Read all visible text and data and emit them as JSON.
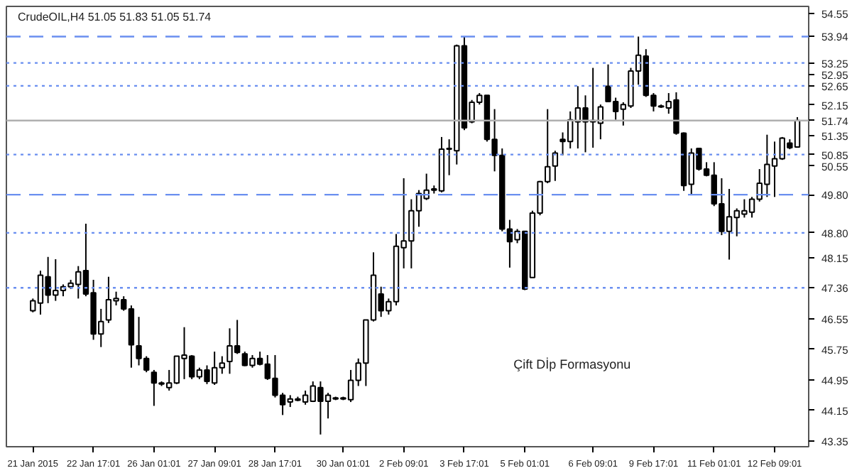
{
  "chart_data": {
    "type": "candlestick",
    "title": "CrudeOIL,H4  51.05 51.83 51.05 51.74",
    "categories": [
      "21 Jan 2015",
      null,
      null,
      null,
      null,
      null,
      null,
      null,
      "22 Jan 17:01",
      null,
      null,
      null,
      null,
      null,
      null,
      null,
      "26 Jan 01:01",
      null,
      null,
      null,
      null,
      null,
      null,
      null,
      "27 Jan 09:01",
      null,
      null,
      null,
      null,
      null,
      null,
      null,
      "28 Jan 17:01",
      null,
      null,
      null,
      null,
      null,
      null,
      null,
      null,
      "30 Jan 01:01",
      null,
      null,
      null,
      null,
      null,
      null,
      null,
      "2 Feb 09:01",
      null,
      null,
      null,
      null,
      null,
      null,
      null,
      "3 Feb 17:01",
      null,
      null,
      null,
      null,
      null,
      null,
      null,
      "5 Feb 01:01",
      null,
      null,
      null,
      null,
      null,
      null,
      null,
      null,
      "6 Feb 09:01",
      null,
      null,
      null,
      null,
      null,
      null,
      null,
      "9 Feb 17:01",
      null,
      null,
      null,
      null,
      null,
      null,
      null,
      "11 Feb 01:01",
      null,
      null,
      null,
      null,
      null,
      null,
      null,
      "12 Feb 09:01",
      null,
      null,
      null
    ],
    "ohlc": [
      [
        46.76,
        47.08,
        46.72,
        47.02
      ],
      [
        46.96,
        47.81,
        46.66,
        47.69
      ],
      [
        47.65,
        48.17,
        46.96,
        47.17
      ],
      [
        47.17,
        48.11,
        47.02,
        47.29
      ],
      [
        47.29,
        47.45,
        47.14,
        47.39
      ],
      [
        47.39,
        47.57,
        47.33,
        47.48
      ],
      [
        47.45,
        47.93,
        47.08,
        47.78
      ],
      [
        47.81,
        49.04,
        47.14,
        47.2
      ],
      [
        47.23,
        47.57,
        46.0,
        46.15
      ],
      [
        46.15,
        46.81,
        45.81,
        46.48
      ],
      [
        46.52,
        47.65,
        46.44,
        47.05
      ],
      [
        47.02,
        47.26,
        46.9,
        47.08
      ],
      [
        47.05,
        47.14,
        46.76,
        46.81
      ],
      [
        46.81,
        46.9,
        45.27,
        45.87
      ],
      [
        45.84,
        46.6,
        45.33,
        45.51
      ],
      [
        45.51,
        45.57,
        45.15,
        45.21
      ],
      [
        45.15,
        45.21,
        44.27,
        44.87
      ],
      [
        44.87,
        44.91,
        44.79,
        44.84
      ],
      [
        44.75,
        45.21,
        44.67,
        44.87
      ],
      [
        44.87,
        45.57,
        44.84,
        45.57
      ],
      [
        45.51,
        46.33,
        44.97,
        45.6
      ],
      [
        45.57,
        45.6,
        44.97,
        45.03
      ],
      [
        45.03,
        45.27,
        44.97,
        45.21
      ],
      [
        45.21,
        45.33,
        44.84,
        44.91
      ],
      [
        44.87,
        45.69,
        44.82,
        45.27
      ],
      [
        45.27,
        45.57,
        45.11,
        45.39
      ],
      [
        45.43,
        46.3,
        45.11,
        45.84
      ],
      [
        45.84,
        46.52,
        45.63,
        45.67
      ],
      [
        45.63,
        45.69,
        45.31,
        45.33
      ],
      [
        45.33,
        45.6,
        45.27,
        45.51
      ],
      [
        45.51,
        45.69,
        45.33,
        45.36
      ],
      [
        45.36,
        45.6,
        44.95,
        44.99
      ],
      [
        44.99,
        45.6,
        44.49,
        44.55
      ],
      [
        44.55,
        44.61,
        44.03,
        44.3
      ],
      [
        44.37,
        44.55,
        44.24,
        44.45
      ],
      [
        44.42,
        44.51,
        44.39,
        44.45
      ],
      [
        44.37,
        44.67,
        44.3,
        44.55
      ],
      [
        44.39,
        44.91,
        44.37,
        44.79
      ],
      [
        44.75,
        44.91,
        43.52,
        44.39
      ],
      [
        44.39,
        44.61,
        43.94,
        44.55
      ],
      [
        44.48,
        44.51,
        44.42,
        44.45
      ],
      [
        44.45,
        44.51,
        44.42,
        44.48
      ],
      [
        44.43,
        45.21,
        44.37,
        44.94
      ],
      [
        44.94,
        45.51,
        44.79,
        45.39
      ],
      [
        45.39,
        46.52,
        44.79,
        46.52
      ],
      [
        46.52,
        48.29,
        46.48,
        47.69
      ],
      [
        47.2,
        47.39,
        46.6,
        46.76
      ],
      [
        46.76,
        47.08,
        46.66,
        47.0
      ],
      [
        47.0,
        48.77,
        46.9,
        48.45
      ],
      [
        48.41,
        50.23,
        47.87,
        48.59
      ],
      [
        48.59,
        49.68,
        47.87,
        49.38
      ],
      [
        49.38,
        49.92,
        48.96,
        49.83
      ],
      [
        49.7,
        50.35,
        49.66,
        49.92
      ],
      [
        49.92,
        50.04,
        49.83,
        49.95
      ],
      [
        49.9,
        51.31,
        49.86,
        50.99
      ],
      [
        50.99,
        51.25,
        50.31,
        51.01
      ],
      [
        50.95,
        53.73,
        50.59,
        53.7
      ],
      [
        53.7,
        53.94,
        51.49,
        51.55
      ],
      [
        51.71,
        52.28,
        51.67,
        52.22
      ],
      [
        52.22,
        52.46,
        52.16,
        52.4
      ],
      [
        52.4,
        52.4,
        51.19,
        51.25
      ],
      [
        51.25,
        52.04,
        50.41,
        50.83
      ],
      [
        50.83,
        51.01,
        48.84,
        48.9
      ],
      [
        48.9,
        49.14,
        47.89,
        48.57
      ],
      [
        48.62,
        48.9,
        48.53,
        48.84
      ],
      [
        48.84,
        48.84,
        47.3,
        47.33
      ],
      [
        47.63,
        49.38,
        47.63,
        49.32
      ],
      [
        49.32,
        50.16,
        49.26,
        50.14
      ],
      [
        50.14,
        52.04,
        50.1,
        50.53
      ],
      [
        50.55,
        50.95,
        50.16,
        50.89
      ],
      [
        51.25,
        51.43,
        50.83,
        51.19
      ],
      [
        51.19,
        51.98,
        51.01,
        51.76
      ],
      [
        51.71,
        52.64,
        51.01,
        52.07
      ],
      [
        52.07,
        52.4,
        50.91,
        51.71
      ],
      [
        51.74,
        53.12,
        51.03,
        51.71
      ],
      [
        51.67,
        52.16,
        51.25,
        52.1
      ],
      [
        52.64,
        53.21,
        52.22,
        52.24
      ],
      [
        52.24,
        52.34,
        51.76,
        51.98
      ],
      [
        52.04,
        52.22,
        51.61,
        52.16
      ],
      [
        52.12,
        53.12,
        52.07,
        53.04
      ],
      [
        53.04,
        53.94,
        52.68,
        53.45
      ],
      [
        53.43,
        53.61,
        52.36,
        52.4
      ],
      [
        52.4,
        52.46,
        51.98,
        52.12
      ],
      [
        52.12,
        52.16,
        52.07,
        52.1
      ],
      [
        52.07,
        52.46,
        51.92,
        52.24
      ],
      [
        52.28,
        52.48,
        51.37,
        51.41
      ],
      [
        51.41,
        51.43,
        49.9,
        50.04
      ],
      [
        50.07,
        51.01,
        49.8,
        50.89
      ],
      [
        51.01,
        51.03,
        50.43,
        50.47
      ],
      [
        50.47,
        50.65,
        50.28,
        50.31
      ],
      [
        50.31,
        50.65,
        49.5,
        49.56
      ],
      [
        49.56,
        50.23,
        48.74,
        48.84
      ],
      [
        48.84,
        49.95,
        48.1,
        49.22
      ],
      [
        49.2,
        49.44,
        48.71,
        49.38
      ],
      [
        49.29,
        49.68,
        49.2,
        49.38
      ],
      [
        49.34,
        49.74,
        49.2,
        49.68
      ],
      [
        49.68,
        50.47,
        49.62,
        50.1
      ],
      [
        50.07,
        51.37,
        49.74,
        50.59
      ],
      [
        50.55,
        51.19,
        49.74,
        50.74
      ],
      [
        50.74,
        51.31,
        50.71,
        51.28
      ],
      [
        51.15,
        51.25,
        50.99,
        51.03
      ],
      [
        51.05,
        51.83,
        51.05,
        51.74
      ]
    ],
    "ylim": [
      43.2,
      54.73
    ],
    "yticks": [
      54.55,
      {
        "value": 53.94,
        "label": "53.94"
      },
      {
        "value": 53.25,
        "label": "53.25"
      },
      52.95,
      {
        "value": 52.65,
        "label": "52.65"
      },
      52.15,
      {
        "value": 51.74,
        "label": "51.74"
      },
      51.35,
      {
        "value": 50.85,
        "label": "50.85"
      },
      50.55,
      {
        "value": 49.8,
        "label": "49.80"
      },
      {
        "value": 48.8,
        "label": "48.80"
      },
      48.15,
      {
        "value": 47.36,
        "label": "47.36"
      },
      46.55,
      45.75,
      44.95,
      44.15,
      43.35
    ],
    "ref_lines": [
      {
        "axis": "y",
        "value": 53.94,
        "color": "#6a8ff0",
        "line_style": "dashed"
      },
      {
        "axis": "y",
        "value": 53.25,
        "color": "#6a8ff0",
        "line_style": "dotted"
      },
      {
        "axis": "y",
        "value": 52.65,
        "color": "#6a8ff0",
        "line_style": "dotted"
      },
      {
        "axis": "y",
        "value": 51.74,
        "color": "#b0b0b0",
        "line_style": "solid"
      },
      {
        "axis": "y",
        "value": 50.85,
        "color": "#6a8ff0",
        "line_style": "dotted"
      },
      {
        "axis": "y",
        "value": 49.8,
        "color": "#6a8ff0",
        "line_style": "dashed"
      },
      {
        "axis": "y",
        "value": 48.8,
        "color": "#6a8ff0",
        "line_style": "dotted"
      },
      {
        "axis": "y",
        "value": 47.36,
        "color": "#6a8ff0",
        "line_style": "dotted"
      }
    ],
    "annotations": [
      "Çift Dİp Formasyonu"
    ],
    "grid": false,
    "legend": false
  }
}
